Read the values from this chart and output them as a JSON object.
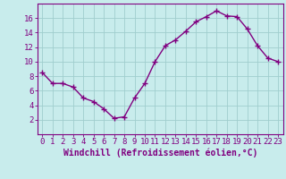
{
  "x": [
    0,
    1,
    2,
    3,
    4,
    5,
    6,
    7,
    8,
    9,
    10,
    11,
    12,
    13,
    14,
    15,
    16,
    17,
    18,
    19,
    20,
    21,
    22,
    23
  ],
  "y": [
    8.5,
    7.0,
    7.0,
    6.5,
    5.0,
    4.5,
    3.5,
    2.2,
    2.4,
    5.0,
    7.0,
    10.0,
    12.2,
    13.0,
    14.2,
    15.5,
    16.2,
    17.0,
    16.3,
    16.2,
    14.5,
    12.2,
    10.5,
    10.0
  ],
  "line_color": "#800080",
  "marker": "+",
  "marker_size": 4,
  "marker_color": "#800080",
  "bg_color": "#c8ecec",
  "grid_color": "#a0cece",
  "axis_color": "#800080",
  "tick_color": "#800080",
  "xlabel": "Windchill (Refroidissement éolien,°C)",
  "title": "",
  "ylim": [
    0,
    18
  ],
  "xlim": [
    -0.5,
    23.5
  ],
  "yticks": [
    2,
    4,
    6,
    8,
    10,
    12,
    14,
    16
  ],
  "xticks": [
    0,
    1,
    2,
    3,
    4,
    5,
    6,
    7,
    8,
    9,
    10,
    11,
    12,
    13,
    14,
    15,
    16,
    17,
    18,
    19,
    20,
    21,
    22,
    23
  ],
  "line_width": 1.0,
  "font_size": 6.5,
  "xlabel_fontsize": 7.0
}
